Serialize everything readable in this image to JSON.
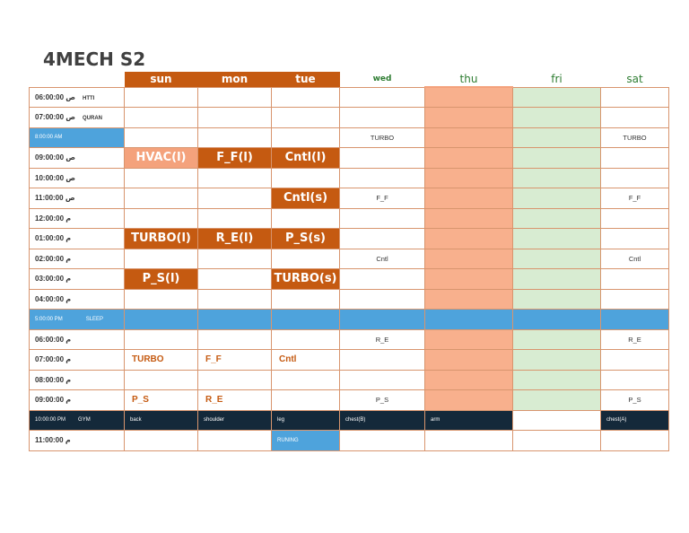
{
  "title": "4MECH S2",
  "days": [
    "sun",
    "mon",
    "tue",
    "wed",
    "thu",
    "fri",
    "sat"
  ],
  "rows": [
    {
      "time": "06:00:00 ص",
      "label": "HTTI"
    },
    {
      "time": "07:00:00 ص",
      "label": "QURAN"
    },
    {
      "time": "8:00:00 AM",
      "label": "",
      "wed": "TURBO",
      "sat": "TURBO"
    },
    {
      "time": "09:00:00 ص",
      "label": "",
      "sun": "HVAC(l)",
      "mon": "F_F(l)",
      "tue": "Cntl(l)"
    },
    {
      "time": "10:00:00 ص",
      "label": ""
    },
    {
      "time": "11:00:00 ص",
      "label": "",
      "tue": "Cntl(s)",
      "wed": "F_F",
      "sat": "F_F"
    },
    {
      "time": "12:00:00 م",
      "label": ""
    },
    {
      "time": "01:00:00 م",
      "label": "",
      "sun": "TURBO(l)",
      "mon": "R_E(l)",
      "tue": "P_S(s)"
    },
    {
      "time": "02:00:00 م",
      "label": "",
      "wed": "Cntl",
      "sat": "Cntl"
    },
    {
      "time": "03:00:00 م",
      "label": "",
      "sun": "P_S(l)",
      "tue": "TURBO(s)"
    },
    {
      "time": "04:00:00 م",
      "label": ""
    },
    {
      "time": "5:00:00 PM",
      "label": "SLEEP"
    },
    {
      "time": "06:00:00 م",
      "label": "",
      "wed": "R_E",
      "sat": "R_E"
    },
    {
      "time": "07:00:00 م",
      "label": "",
      "sun": "TURBO",
      "mon": "F_F",
      "tue": "Cntl"
    },
    {
      "time": "08:00:00 م",
      "label": ""
    },
    {
      "time": "09:00:00 م",
      "label": "",
      "sun": "P_S",
      "mon": "R_E",
      "wed": "P_S",
      "sat": "P_S"
    },
    {
      "time": "10:00:00 PM",
      "label": "GYM",
      "sun": "back",
      "mon": "shoulder",
      "tue": "leg",
      "wed": "chest(B)",
      "thu": "arm",
      "sat": "chest(A)"
    },
    {
      "time": "11:00:00 م",
      "label": "",
      "tue": "RUNING"
    }
  ],
  "colors": {
    "orange": "#c55a11",
    "peach": "#f8b08d",
    "light_green": "#d8ecd2",
    "blue": "#4ea3dc",
    "navy": "#14293a"
  }
}
